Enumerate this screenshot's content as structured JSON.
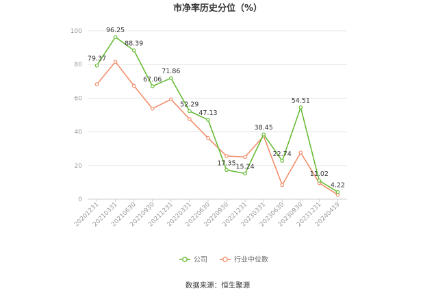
{
  "chart_data": {
    "type": "line",
    "title": "市净率历史分位（%）",
    "x": [
      "20201231",
      "20210331",
      "20210630",
      "20210930",
      "20211231",
      "20220331",
      "20220630",
      "20220930",
      "20221231",
      "20230331",
      "20230630",
      "20230930",
      "20231231",
      "20240419"
    ],
    "series": [
      {
        "name": "公司",
        "color": "#66bb33",
        "values": [
          79.37,
          96.25,
          88.39,
          67.06,
          71.86,
          52.29,
          47.13,
          17.35,
          15.24,
          38.45,
          22.74,
          54.51,
          11.02,
          4.22
        ]
      },
      {
        "name": "行业中位数",
        "color": "#f28d6a",
        "values": [
          68.2,
          81.6,
          67.3,
          53.8,
          59.3,
          47.6,
          36.3,
          25.6,
          25.1,
          37.5,
          8.4,
          27.7,
          9.6,
          2.6
        ]
      }
    ],
    "labeled_series": "公司",
    "ylim": [
      0,
      100
    ],
    "yticks": [
      0,
      20,
      40,
      60,
      80,
      100
    ],
    "grid": true,
    "legend_position": "bottom-center",
    "source": "数据来源：恒生聚源"
  }
}
